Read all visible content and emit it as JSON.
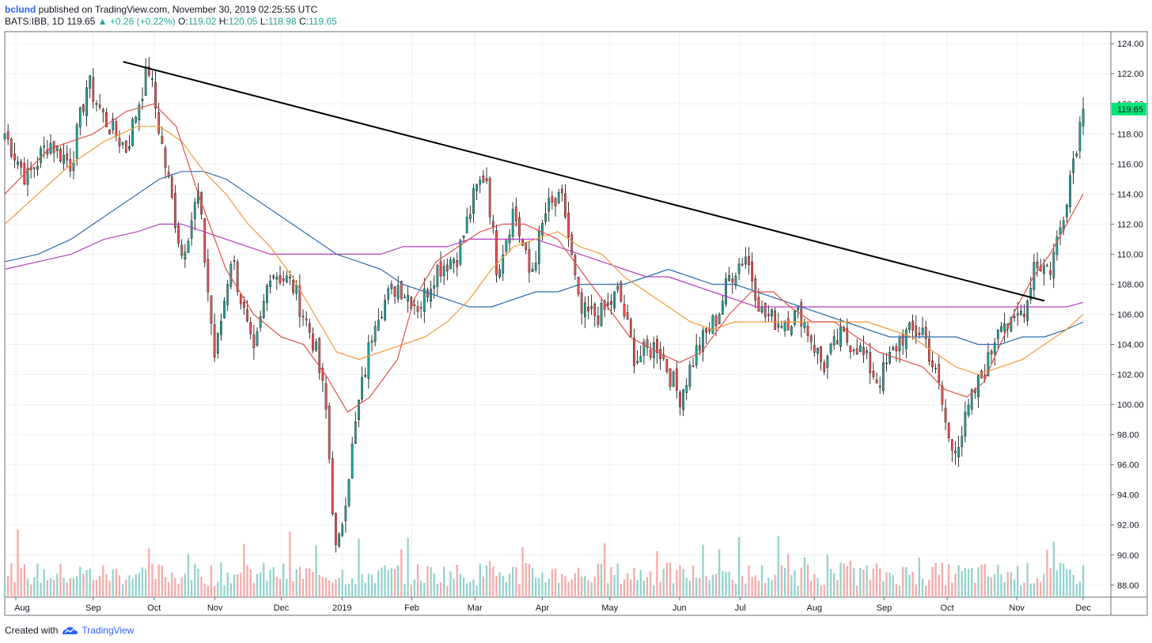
{
  "header": {
    "user": "bclund",
    "published": " published on TradingView.com, November 30, 2019 02:25:55 UTC",
    "symbol": "BATS:IBB, 1D",
    "last": "119.65",
    "change": "+0.26 (+0.22%)",
    "o_label": "O:",
    "o": "119.02",
    "h_label": "H:",
    "h": "120.05",
    "l_label": "L:",
    "l": "118.98",
    "c_label": "C:",
    "c": "119.65"
  },
  "footer": {
    "created": "Created with",
    "brand": "TradingView"
  },
  "colors": {
    "up": "#26a69a",
    "down": "#ef5350",
    "vol_up": "#92d2cc",
    "vol_down": "#f7a9a7",
    "ma_red": "#e0514a",
    "ma_orange": "#f39a3a",
    "ma_blue": "#2f6eaf",
    "ma_purple": "#b33fbf",
    "trend": "#000000",
    "price_tag": "#00e676",
    "grid": "#eef0f3",
    "border": "#6b6e75"
  },
  "chart_data": {
    "type": "candlestick",
    "ylim": [
      87.2,
      124.8
    ],
    "y_ticks": [
      "124.00",
      "122.00",
      "120.00",
      "118.00",
      "116.00",
      "114.00",
      "112.00",
      "110.00",
      "108.00",
      "106.00",
      "104.00",
      "102.00",
      "100.00",
      "98.00",
      "96.00",
      "94.00",
      "92.00",
      "90.00",
      "88.00"
    ],
    "x_ticks": [
      "Aug",
      "Sep",
      "Oct",
      "Nov",
      "Dec",
      "2019",
      "Feb",
      "Mar",
      "Apr",
      "May",
      "Jun",
      "Jul",
      "Aug",
      "Sep",
      "Oct",
      "Nov",
      "Dec"
    ],
    "x_tick_pos": [
      0.01,
      0.08,
      0.135,
      0.19,
      0.25,
      0.305,
      0.368,
      0.425,
      0.486,
      0.547,
      0.61,
      0.665,
      0.732,
      0.795,
      0.852,
      0.915,
      0.975
    ],
    "last_price_label": "119.65",
    "price_anchors": [
      [
        0,
        118
      ],
      [
        0.02,
        115
      ],
      [
        0.04,
        117.5
      ],
      [
        0.06,
        116
      ],
      [
        0.075,
        121.5
      ],
      [
        0.09,
        119
      ],
      [
        0.11,
        117
      ],
      [
        0.13,
        122.5
      ],
      [
        0.145,
        116
      ],
      [
        0.16,
        110
      ],
      [
        0.175,
        114
      ],
      [
        0.19,
        103
      ],
      [
        0.205,
        110
      ],
      [
        0.225,
        103
      ],
      [
        0.24,
        109
      ],
      [
        0.26,
        108
      ],
      [
        0.28,
        104
      ],
      [
        0.29,
        100
      ],
      [
        0.3,
        89.5
      ],
      [
        0.31,
        95
      ],
      [
        0.32,
        100
      ],
      [
        0.335,
        106
      ],
      [
        0.355,
        108
      ],
      [
        0.375,
        106.5
      ],
      [
        0.39,
        109
      ],
      [
        0.41,
        110
      ],
      [
        0.425,
        114
      ],
      [
        0.435,
        115.5
      ],
      [
        0.445,
        109
      ],
      [
        0.46,
        113
      ],
      [
        0.475,
        108.5
      ],
      [
        0.49,
        113
      ],
      [
        0.505,
        113.5
      ],
      [
        0.52,
        106
      ],
      [
        0.54,
        106
      ],
      [
        0.555,
        107.5
      ],
      [
        0.57,
        103
      ],
      [
        0.59,
        104
      ],
      [
        0.61,
        100.5
      ],
      [
        0.625,
        103.5
      ],
      [
        0.645,
        106
      ],
      [
        0.655,
        108.5
      ],
      [
        0.67,
        110
      ],
      [
        0.685,
        106
      ],
      [
        0.7,
        105.5
      ],
      [
        0.72,
        106
      ],
      [
        0.74,
        102.5
      ],
      [
        0.755,
        104.5
      ],
      [
        0.77,
        104
      ],
      [
        0.79,
        101.5
      ],
      [
        0.81,
        104.5
      ],
      [
        0.83,
        105
      ],
      [
        0.845,
        101
      ],
      [
        0.855,
        97
      ],
      [
        0.865,
        98
      ],
      [
        0.875,
        100.5
      ],
      [
        0.89,
        103
      ],
      [
        0.9,
        106
      ],
      [
        0.91,
        105
      ],
      [
        0.925,
        107
      ],
      [
        0.93,
        109.5
      ],
      [
        0.945,
        109
      ],
      [
        0.955,
        112
      ],
      [
        0.965,
        116
      ],
      [
        0.975,
        119.65
      ]
    ],
    "trendline": [
      [
        0.107,
        122.8
      ],
      [
        0.94,
        106.9
      ]
    ],
    "ma_red": [
      [
        0,
        114
      ],
      [
        0.04,
        117
      ],
      [
        0.08,
        118
      ],
      [
        0.11,
        119.5
      ],
      [
        0.135,
        120
      ],
      [
        0.155,
        118.5
      ],
      [
        0.175,
        114
      ],
      [
        0.2,
        109
      ],
      [
        0.225,
        106
      ],
      [
        0.25,
        104.5
      ],
      [
        0.27,
        104
      ],
      [
        0.29,
        102
      ],
      [
        0.31,
        99.5
      ],
      [
        0.33,
        100.5
      ],
      [
        0.355,
        103
      ],
      [
        0.37,
        107
      ],
      [
        0.39,
        109.5
      ],
      [
        0.41,
        110.5
      ],
      [
        0.43,
        111.5
      ],
      [
        0.45,
        112
      ],
      [
        0.47,
        112
      ],
      [
        0.5,
        111
      ],
      [
        0.52,
        109
      ],
      [
        0.54,
        107
      ],
      [
        0.565,
        104.5
      ],
      [
        0.59,
        103.5
      ],
      [
        0.61,
        102.8
      ],
      [
        0.63,
        103.5
      ],
      [
        0.655,
        106
      ],
      [
        0.675,
        107.5
      ],
      [
        0.695,
        107.5
      ],
      [
        0.71,
        106.5
      ],
      [
        0.73,
        105.5
      ],
      [
        0.75,
        105.5
      ],
      [
        0.77,
        104.5
      ],
      [
        0.79,
        103.5
      ],
      [
        0.81,
        103
      ],
      [
        0.83,
        102.5
      ],
      [
        0.85,
        101
      ],
      [
        0.87,
        100.5
      ],
      [
        0.885,
        101.5
      ],
      [
        0.9,
        104
      ],
      [
        0.915,
        106.5
      ],
      [
        0.93,
        108.5
      ],
      [
        0.945,
        110
      ],
      [
        0.96,
        112
      ],
      [
        0.975,
        114
      ]
    ],
    "ma_orange": [
      [
        0,
        112
      ],
      [
        0.03,
        114
      ],
      [
        0.06,
        116
      ],
      [
        0.09,
        117.5
      ],
      [
        0.12,
        118.5
      ],
      [
        0.14,
        118.5
      ],
      [
        0.16,
        117.5
      ],
      [
        0.18,
        115.5
      ],
      [
        0.2,
        114
      ],
      [
        0.22,
        112
      ],
      [
        0.24,
        110.5
      ],
      [
        0.26,
        108.5
      ],
      [
        0.28,
        106
      ],
      [
        0.3,
        103.5
      ],
      [
        0.32,
        103
      ],
      [
        0.34,
        103.5
      ],
      [
        0.36,
        104
      ],
      [
        0.38,
        104.5
      ],
      [
        0.4,
        105.5
      ],
      [
        0.42,
        107
      ],
      [
        0.44,
        109
      ],
      [
        0.46,
        110.5
      ],
      [
        0.48,
        111
      ],
      [
        0.5,
        111.5
      ],
      [
        0.52,
        110.5
      ],
      [
        0.54,
        110
      ],
      [
        0.56,
        108.5
      ],
      [
        0.58,
        107.5
      ],
      [
        0.6,
        106.5
      ],
      [
        0.62,
        105.5
      ],
      [
        0.64,
        105
      ],
      [
        0.66,
        105.5
      ],
      [
        0.68,
        105.5
      ],
      [
        0.7,
        105.5
      ],
      [
        0.72,
        105.5
      ],
      [
        0.74,
        105.5
      ],
      [
        0.76,
        105.5
      ],
      [
        0.78,
        105.5
      ],
      [
        0.8,
        105
      ],
      [
        0.82,
        104.5
      ],
      [
        0.84,
        103.5
      ],
      [
        0.86,
        102.5
      ],
      [
        0.88,
        102
      ],
      [
        0.9,
        102.5
      ],
      [
        0.92,
        103
      ],
      [
        0.94,
        104
      ],
      [
        0.96,
        105
      ],
      [
        0.975,
        106
      ]
    ],
    "ma_blue": [
      [
        0,
        109.5
      ],
      [
        0.03,
        110
      ],
      [
        0.06,
        111
      ],
      [
        0.09,
        112.5
      ],
      [
        0.12,
        114
      ],
      [
        0.14,
        115
      ],
      [
        0.16,
        115.5
      ],
      [
        0.18,
        115.5
      ],
      [
        0.2,
        115
      ],
      [
        0.22,
        114
      ],
      [
        0.24,
        113
      ],
      [
        0.26,
        112
      ],
      [
        0.28,
        111
      ],
      [
        0.3,
        110
      ],
      [
        0.32,
        109.5
      ],
      [
        0.34,
        109
      ],
      [
        0.36,
        108
      ],
      [
        0.38,
        107.5
      ],
      [
        0.4,
        107
      ],
      [
        0.42,
        106.5
      ],
      [
        0.44,
        106.5
      ],
      [
        0.46,
        107
      ],
      [
        0.48,
        107.5
      ],
      [
        0.5,
        107.5
      ],
      [
        0.52,
        108
      ],
      [
        0.54,
        108
      ],
      [
        0.56,
        108
      ],
      [
        0.58,
        108.5
      ],
      [
        0.6,
        109
      ],
      [
        0.62,
        108.5
      ],
      [
        0.64,
        108
      ],
      [
        0.66,
        108
      ],
      [
        0.68,
        107.5
      ],
      [
        0.7,
        107
      ],
      [
        0.72,
        106.5
      ],
      [
        0.74,
        106
      ],
      [
        0.76,
        105.5
      ],
      [
        0.78,
        105
      ],
      [
        0.8,
        104.5
      ],
      [
        0.82,
        104.5
      ],
      [
        0.84,
        104.5
      ],
      [
        0.86,
        104.5
      ],
      [
        0.88,
        104
      ],
      [
        0.9,
        104
      ],
      [
        0.92,
        104.5
      ],
      [
        0.94,
        104.5
      ],
      [
        0.96,
        105
      ],
      [
        0.975,
        105.5
      ]
    ],
    "ma_purple": [
      [
        0,
        109
      ],
      [
        0.03,
        109.5
      ],
      [
        0.06,
        110
      ],
      [
        0.09,
        111
      ],
      [
        0.12,
        111.5
      ],
      [
        0.14,
        112
      ],
      [
        0.16,
        112
      ],
      [
        0.18,
        111.5
      ],
      [
        0.2,
        111
      ],
      [
        0.22,
        110.5
      ],
      [
        0.24,
        110
      ],
      [
        0.26,
        110
      ],
      [
        0.28,
        110
      ],
      [
        0.3,
        110
      ],
      [
        0.32,
        110
      ],
      [
        0.34,
        110
      ],
      [
        0.36,
        110.5
      ],
      [
        0.38,
        110.5
      ],
      [
        0.4,
        110.5
      ],
      [
        0.42,
        111
      ],
      [
        0.44,
        111
      ],
      [
        0.46,
        111
      ],
      [
        0.48,
        111
      ],
      [
        0.5,
        110.5
      ],
      [
        0.52,
        110
      ],
      [
        0.54,
        109.5
      ],
      [
        0.56,
        109
      ],
      [
        0.58,
        108.5
      ],
      [
        0.6,
        108.5
      ],
      [
        0.62,
        108
      ],
      [
        0.64,
        107.5
      ],
      [
        0.66,
        107
      ],
      [
        0.68,
        106.5
      ],
      [
        0.7,
        106.5
      ],
      [
        0.72,
        106.5
      ],
      [
        0.74,
        106.5
      ],
      [
        0.76,
        106.5
      ],
      [
        0.78,
        106.5
      ],
      [
        0.8,
        106.5
      ],
      [
        0.82,
        106.5
      ],
      [
        0.84,
        106.5
      ],
      [
        0.86,
        106.5
      ],
      [
        0.88,
        106.5
      ],
      [
        0.9,
        106.5
      ],
      [
        0.92,
        106.5
      ],
      [
        0.94,
        106.5
      ],
      [
        0.96,
        106.5
      ],
      [
        0.975,
        106.8
      ]
    ]
  }
}
